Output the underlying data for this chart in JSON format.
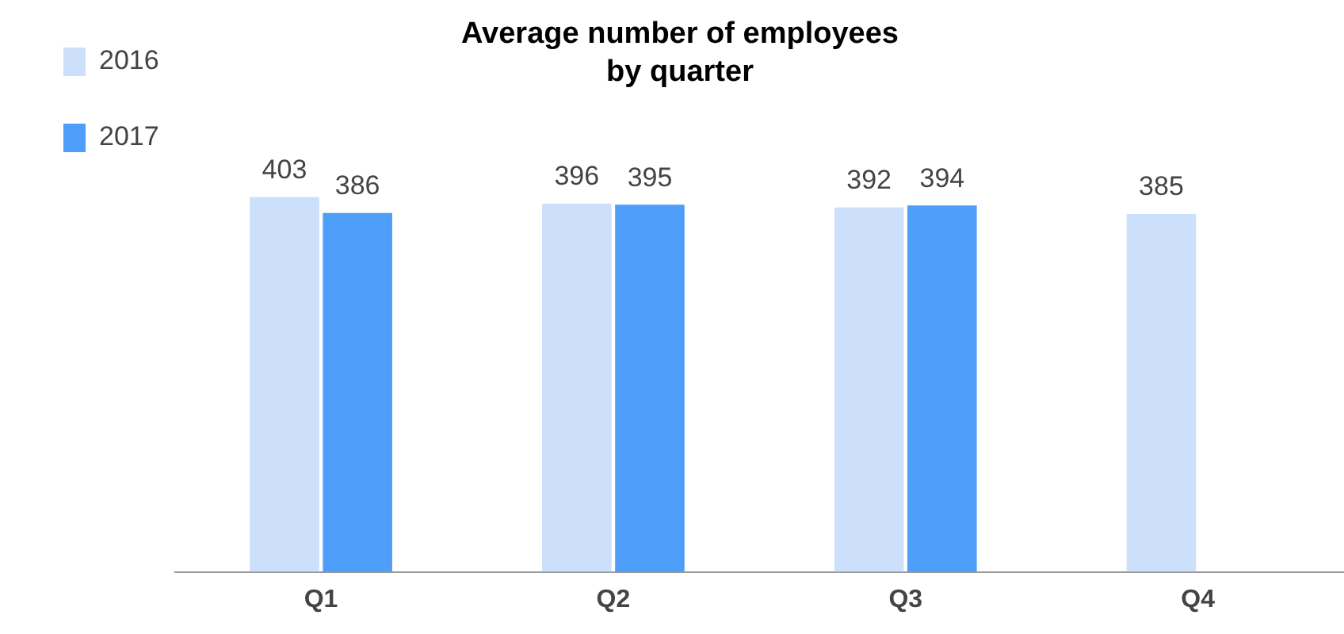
{
  "chart_data": {
    "type": "bar",
    "title": "Average number of employees\nby quarter",
    "categories": [
      "Q1",
      "Q2",
      "Q3",
      "Q4"
    ],
    "series": [
      {
        "name": "2016",
        "color": "#cce0fb",
        "values": [
          403,
          396,
          392,
          385
        ]
      },
      {
        "name": "2017",
        "color": "#4e9ef9",
        "values": [
          386,
          395,
          394,
          null
        ]
      }
    ],
    "data_labels": true,
    "grid": false,
    "legend": "left"
  }
}
